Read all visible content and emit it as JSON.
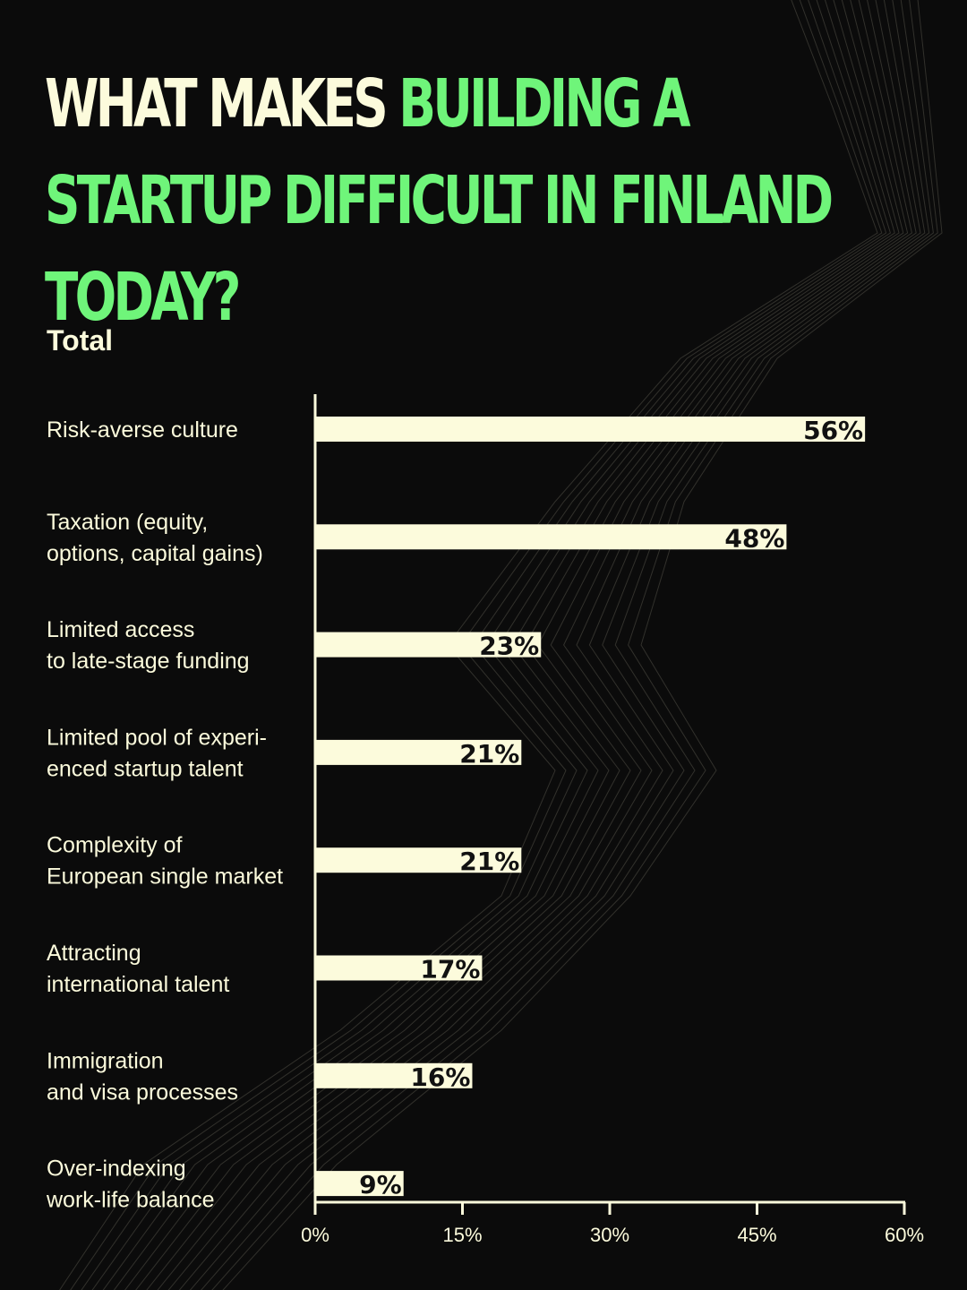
{
  "title": {
    "part1": "WHAT MAKES ",
    "part2": "BUILDING A STARTUP DIFFICULT IN FINLAND TODAY?"
  },
  "subtitle": "Total",
  "colors": {
    "background": "#0b0b0b",
    "text": "#fcfbdc",
    "accent": "#6ff57a",
    "bar": "#fcfbdc",
    "bar_label": "#111111"
  },
  "chart_data": {
    "type": "bar",
    "orientation": "horizontal",
    "categories": [
      [
        "Risk-averse culture"
      ],
      [
        "Taxation (equity,",
        "options, capital gains)"
      ],
      [
        "Limited access",
        "to late-stage funding"
      ],
      [
        "Limited pool of experi-",
        "enced startup talent"
      ],
      [
        "Complexity of",
        "European single market"
      ],
      [
        "Attracting",
        "international talent"
      ],
      [
        "Immigration",
        "and visa processes"
      ],
      [
        "Over-indexing",
        "work-life balance"
      ]
    ],
    "values": [
      56,
      48,
      23,
      21,
      21,
      17,
      16,
      9
    ],
    "value_labels": [
      "56%",
      "48%",
      "23%",
      "21%",
      "21%",
      "17%",
      "16%",
      "9%"
    ],
    "xlim": [
      0,
      60
    ],
    "xticks": [
      0,
      15,
      30,
      45,
      60
    ],
    "xtick_labels": [
      "0%",
      "15%",
      "30%",
      "45%",
      "60%"
    ],
    "grid": false,
    "legend": "none"
  }
}
